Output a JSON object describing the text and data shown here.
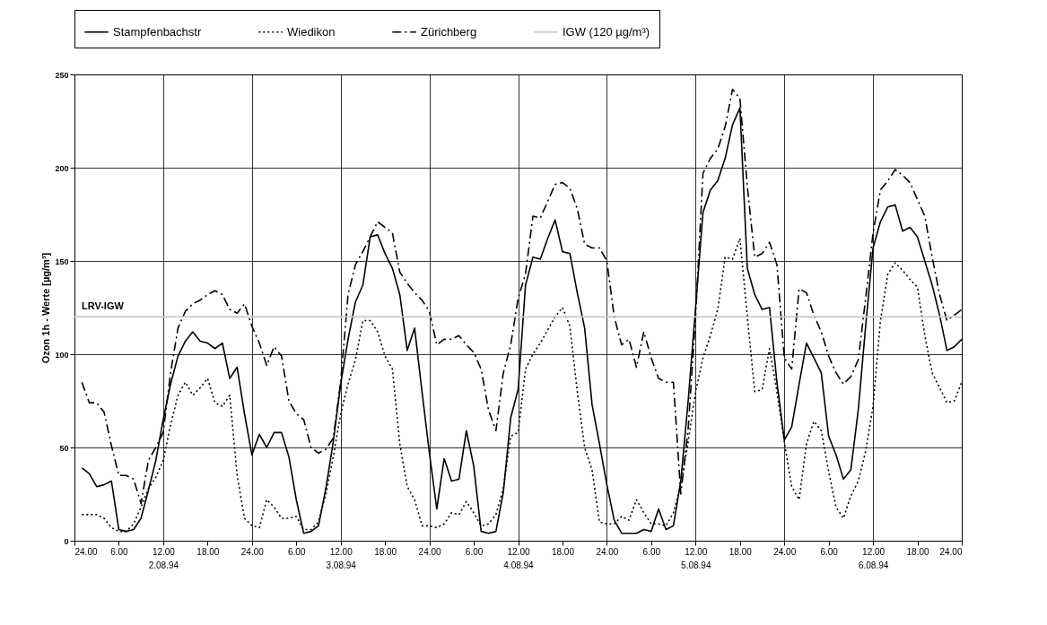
{
  "chart_data": {
    "type": "line",
    "ylabel": "Ozon 1h - Werte [µg/m³]",
    "xlim": [
      "1994-08-02T00:00",
      "1994-08-07T00:00"
    ],
    "ylim": [
      0,
      250
    ],
    "yticks": [
      0,
      50,
      100,
      150,
      200,
      250
    ],
    "xticks": [
      {
        "value": "1994-08-02T00:00",
        "label": "24.00"
      },
      {
        "value": "1994-08-02T06:00",
        "label": "6.00"
      },
      {
        "value": "1994-08-02T12:00",
        "label": "12.00\n2.08.94"
      },
      {
        "value": "1994-08-02T18:00",
        "label": "18.00"
      },
      {
        "value": "1994-08-03T00:00",
        "label": "24.00"
      },
      {
        "value": "1994-08-03T06:00",
        "label": "6.00"
      },
      {
        "value": "1994-08-03T12:00",
        "label": "12.00\n3.08.94"
      },
      {
        "value": "1994-08-03T18:00",
        "label": "18.00"
      },
      {
        "value": "1994-08-04T00:00",
        "label": "24.00"
      },
      {
        "value": "1994-08-04T06:00",
        "label": "6.00"
      },
      {
        "value": "1994-08-04T12:00",
        "label": "12.00\n4.08.94"
      },
      {
        "value": "1994-08-04T18:00",
        "label": "18.00"
      },
      {
        "value": "1994-08-05T00:00",
        "label": "24.00"
      },
      {
        "value": "1994-08-05T06:00",
        "label": "6.00"
      },
      {
        "value": "1994-08-05T12:00",
        "label": "12.00\n5.08.94"
      },
      {
        "value": "1994-08-05T18:00",
        "label": "18.00"
      },
      {
        "value": "1994-08-06T00:00",
        "label": "24.00"
      },
      {
        "value": "1994-08-06T06:00",
        "label": "6.00"
      },
      {
        "value": "1994-08-06T12:00",
        "label": "12.00\n6.08.94"
      },
      {
        "value": "1994-08-06T18:00",
        "label": "18.00"
      },
      {
        "value": "1994-08-07T00:00",
        "label": "24.00"
      }
    ],
    "grid": true,
    "legend": "top",
    "x": [
      "1994-08-02T01:00",
      "1994-08-02T02:00",
      "1994-08-02T03:00",
      "1994-08-02T04:00",
      "1994-08-02T05:00",
      "1994-08-02T06:00",
      "1994-08-02T07:00",
      "1994-08-02T08:00",
      "1994-08-02T09:00",
      "1994-08-02T10:00",
      "1994-08-02T11:00",
      "1994-08-02T12:00",
      "1994-08-02T13:00",
      "1994-08-02T14:00",
      "1994-08-02T15:00",
      "1994-08-02T16:00",
      "1994-08-02T17:00",
      "1994-08-02T18:00",
      "1994-08-02T19:00",
      "1994-08-02T20:00",
      "1994-08-02T21:00",
      "1994-08-02T22:00",
      "1994-08-02T23:00",
      "1994-08-03T00:00",
      "1994-08-03T01:00",
      "1994-08-03T02:00",
      "1994-08-03T03:00",
      "1994-08-03T04:00",
      "1994-08-03T05:00",
      "1994-08-03T06:00",
      "1994-08-03T07:00",
      "1994-08-03T08:00",
      "1994-08-03T09:00",
      "1994-08-03T10:00",
      "1994-08-03T11:00",
      "1994-08-03T12:00",
      "1994-08-03T13:00",
      "1994-08-03T14:00",
      "1994-08-03T15:00",
      "1994-08-03T16:00",
      "1994-08-03T17:00",
      "1994-08-03T18:00",
      "1994-08-03T19:00",
      "1994-08-03T20:00",
      "1994-08-03T21:00",
      "1994-08-03T22:00",
      "1994-08-03T23:00",
      "1994-08-04T00:00",
      "1994-08-04T01:00",
      "1994-08-04T02:00",
      "1994-08-04T03:00",
      "1994-08-04T04:00",
      "1994-08-04T05:00",
      "1994-08-04T06:00",
      "1994-08-04T07:00",
      "1994-08-04T08:00",
      "1994-08-04T09:00",
      "1994-08-04T10:00",
      "1994-08-04T11:00",
      "1994-08-04T12:00",
      "1994-08-04T13:00",
      "1994-08-04T14:00",
      "1994-08-04T15:00",
      "1994-08-04T16:00",
      "1994-08-04T17:00",
      "1994-08-04T18:00",
      "1994-08-04T19:00",
      "1994-08-04T20:00",
      "1994-08-04T21:00",
      "1994-08-04T22:00",
      "1994-08-04T23:00",
      "1994-08-05T00:00",
      "1994-08-05T01:00",
      "1994-08-05T02:00",
      "1994-08-05T03:00",
      "1994-08-05T04:00",
      "1994-08-05T05:00",
      "1994-08-05T06:00",
      "1994-08-05T07:00",
      "1994-08-05T08:00",
      "1994-08-05T09:00",
      "1994-08-05T10:00",
      "1994-08-05T11:00",
      "1994-08-05T12:00",
      "1994-08-05T13:00",
      "1994-08-05T14:00",
      "1994-08-05T15:00",
      "1994-08-05T16:00",
      "1994-08-05T17:00",
      "1994-08-05T18:00",
      "1994-08-05T19:00",
      "1994-08-05T20:00",
      "1994-08-05T21:00",
      "1994-08-05T22:00",
      "1994-08-05T23:00",
      "1994-08-06T00:00",
      "1994-08-06T01:00",
      "1994-08-06T02:00",
      "1994-08-06T03:00",
      "1994-08-06T04:00",
      "1994-08-06T05:00",
      "1994-08-06T06:00",
      "1994-08-06T07:00",
      "1994-08-06T08:00",
      "1994-08-06T09:00",
      "1994-08-06T10:00",
      "1994-08-06T11:00",
      "1994-08-06T12:00",
      "1994-08-06T13:00",
      "1994-08-06T14:00",
      "1994-08-06T15:00",
      "1994-08-06T16:00",
      "1994-08-06T17:00",
      "1994-08-06T18:00",
      "1994-08-06T19:00",
      "1994-08-06T20:00",
      "1994-08-06T21:00",
      "1994-08-06T22:00",
      "1994-08-06T23:00",
      "1994-08-07T00:00"
    ],
    "series": [
      {
        "name": "Stampfenbachstr",
        "color": "#000000",
        "line_style": "solid",
        "values": [
          39,
          36,
          29,
          30,
          32,
          6,
          5,
          6,
          12,
          27,
          43,
          65,
          84,
          99,
          107,
          112,
          107,
          106,
          103,
          106,
          87,
          93,
          68,
          46,
          57,
          50,
          58,
          58,
          45,
          22,
          4,
          5,
          8,
          28,
          53,
          84,
          108,
          128,
          137,
          163,
          164,
          154,
          146,
          132,
          102,
          114,
          80,
          47,
          17,
          44,
          32,
          33,
          59,
          40,
          5,
          4,
          5,
          26,
          66,
          81,
          137,
          152,
          151,
          162,
          172,
          155,
          154,
          133,
          114,
          73,
          52,
          30,
          11,
          4,
          4,
          4,
          6,
          5,
          17,
          6,
          8,
          32,
          75,
          125,
          176,
          188,
          193,
          205,
          223,
          232,
          146,
          132,
          124,
          125,
          85,
          54,
          61,
          84,
          106,
          98,
          90,
          56,
          46,
          33,
          38,
          70,
          115,
          157,
          171,
          179,
          180,
          166,
          168,
          163,
          150,
          137,
          121,
          102,
          104,
          108
        ]
      },
      {
        "name": "Wiedikon",
        "color": "#000000",
        "line_style": "dotted",
        "values": [
          14,
          14,
          14,
          12,
          7,
          5,
          5,
          9,
          18,
          28,
          34,
          43,
          62,
          78,
          85,
          78,
          82,
          87,
          74,
          72,
          78,
          35,
          12,
          8,
          7,
          22,
          18,
          12,
          12,
          13,
          6,
          6,
          10,
          25,
          45,
          68,
          84,
          97,
          118,
          118,
          112,
          99,
          92,
          52,
          29,
          22,
          8,
          8,
          7,
          9,
          15,
          14,
          21,
          15,
          8,
          9,
          14,
          28,
          56,
          58,
          92,
          100,
          106,
          113,
          120,
          125,
          115,
          80,
          50,
          38,
          10,
          9,
          9,
          13,
          11,
          22,
          15,
          9,
          9,
          8,
          15,
          30,
          53,
          80,
          98,
          110,
          124,
          152,
          151,
          162,
          120,
          80,
          81,
          103,
          80,
          53,
          29,
          22,
          52,
          64,
          59,
          37,
          18,
          12,
          24,
          32,
          48,
          72,
          118,
          143,
          149,
          145,
          140,
          136,
          110,
          90,
          82,
          74,
          75,
          85
        ]
      },
      {
        "name": "Zürichberg",
        "color": "#000000",
        "line_style": "dashed",
        "values": [
          85,
          74,
          74,
          69,
          51,
          35,
          35,
          33,
          20,
          43,
          50,
          58,
          90,
          114,
          123,
          127,
          129,
          132,
          134,
          132,
          124,
          122,
          127,
          115,
          106,
          94,
          104,
          99,
          75,
          68,
          65,
          50,
          47,
          49,
          55,
          85,
          132,
          148,
          155,
          163,
          171,
          168,
          165,
          144,
          138,
          133,
          129,
          123,
          105,
          108,
          108,
          110,
          105,
          101,
          92,
          70,
          59,
          90,
          105,
          130,
          143,
          174,
          173,
          182,
          191,
          192,
          189,
          178,
          159,
          157,
          157,
          150,
          120,
          105,
          108,
          93,
          112,
          98,
          87,
          85,
          85,
          25,
          60,
          120,
          197,
          205,
          210,
          222,
          242,
          237,
          190,
          152,
          154,
          160,
          148,
          98,
          92,
          135,
          133,
          121,
          112,
          99,
          90,
          84,
          88,
          97,
          130,
          165,
          188,
          193,
          199,
          196,
          192,
          183,
          174,
          152,
          132,
          118,
          121,
          124
        ]
      },
      {
        "name": "IGW (120 µg/m³)",
        "color": "#c8c8c8",
        "line_style": "solid",
        "x": [
          "1994-08-02T00:00",
          "1994-08-07T00:00"
        ],
        "values": [
          120,
          120
        ]
      }
    ],
    "annotations": [
      {
        "text": "LRV-IGW",
        "x": "1994-08-02T00:00",
        "y": 120
      }
    ]
  }
}
